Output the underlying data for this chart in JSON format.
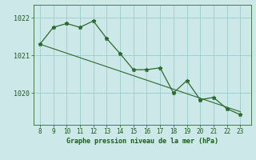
{
  "x": [
    8,
    9,
    10,
    11,
    12,
    13,
    14,
    15,
    16,
    17,
    18,
    19,
    20,
    21,
    22,
    23
  ],
  "y": [
    1021.3,
    1021.75,
    1021.85,
    1021.75,
    1021.92,
    1021.45,
    1021.05,
    1020.62,
    1020.62,
    1020.67,
    1020.0,
    1020.33,
    1019.82,
    1019.88,
    1019.58,
    1019.42
  ],
  "trend_x": [
    8,
    23
  ],
  "trend_y": [
    1021.3,
    1019.5
  ],
  "line_color": "#2d6a2d",
  "bg_color": "#cce8e8",
  "grid_color": "#99cccc",
  "xlabel": "Graphe pression niveau de la mer (hPa)",
  "yticks": [
    1020,
    1021,
    1022
  ],
  "xticks": [
    8,
    9,
    10,
    11,
    12,
    13,
    14,
    15,
    16,
    17,
    18,
    19,
    20,
    21,
    22,
    23
  ],
  "ylim": [
    1019.15,
    1022.35
  ],
  "xlim": [
    7.5,
    23.8
  ],
  "xlabel_color": "#1a5a1a",
  "tick_color": "#1a5a1a",
  "spine_color": "#336633"
}
